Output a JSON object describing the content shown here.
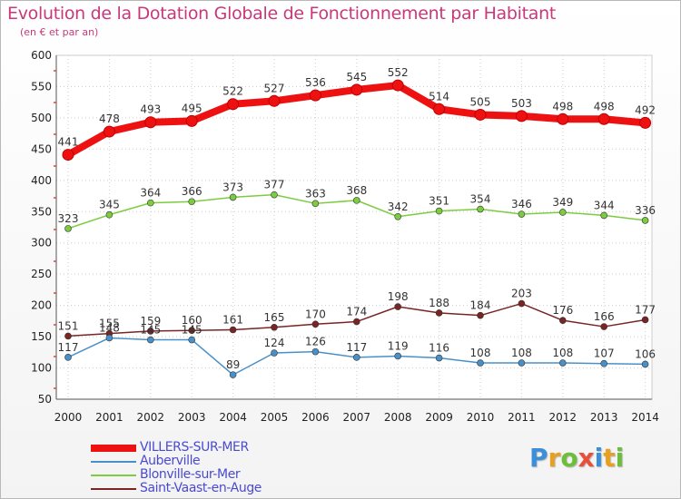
{
  "title": "Evolution de la Dotation Globale de Fonctionnement par Habitant",
  "subtitle": "(en € et par an)",
  "logo": {
    "text": "Proxiti",
    "colors": [
      "#3a8fd8",
      "#e8a020",
      "#6cbf3a",
      "#e8503a",
      "#3a8fd8",
      "#e8a020",
      "#6cbf3a"
    ]
  },
  "chart_data": {
    "type": "line",
    "title": "Evolution de la Dotation Globale de Fonctionnement par Habitant",
    "subtitle": "(en € et par an)",
    "x": [
      "2000",
      "2001",
      "2002",
      "2003",
      "2004",
      "2005",
      "2006",
      "2007",
      "2008",
      "2009",
      "2010",
      "2011",
      "2012",
      "2013",
      "2014"
    ],
    "ylim": [
      50,
      600
    ],
    "yticks": [
      50,
      100,
      150,
      200,
      250,
      300,
      350,
      400,
      450,
      500,
      550,
      600
    ],
    "grid": true,
    "legend_position": "bottom-left",
    "series": [
      {
        "name": "VILLERS-SUR-MER",
        "color": "#ee1111",
        "values": [
          441,
          478,
          493,
          495,
          522,
          527,
          536,
          545,
          552,
          514,
          505,
          503,
          498,
          498,
          492
        ]
      },
      {
        "name": "Auberville",
        "color": "#4a90c8",
        "values": [
          117,
          148,
          145,
          145,
          89,
          124,
          126,
          117,
          119,
          116,
          108,
          108,
          108,
          107,
          106
        ]
      },
      {
        "name": "Blonville-sur-Mer",
        "color": "#7ccc40",
        "values": [
          323,
          345,
          364,
          366,
          373,
          377,
          363,
          368,
          342,
          351,
          354,
          346,
          349,
          344,
          336
        ]
      },
      {
        "name": "Saint-Vaast-en-Auge",
        "color": "#7a2424",
        "values": [
          151,
          155,
          159,
          160,
          161,
          165,
          170,
          174,
          198,
          188,
          184,
          203,
          176,
          166,
          177
        ]
      }
    ]
  }
}
